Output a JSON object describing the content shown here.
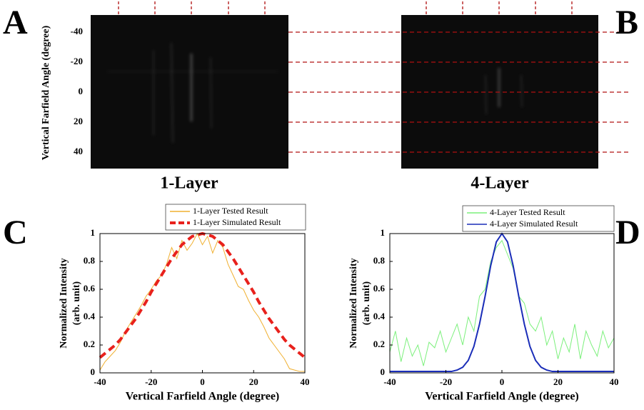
{
  "figure": {
    "image_ylabel": "Vertical Farfield Angle (degree)",
    "image_yticks": [
      -40,
      -20,
      0,
      20,
      40
    ],
    "images": [
      {
        "letter": "A",
        "caption": "1-Layer"
      },
      {
        "letter": "B",
        "caption": "4-Layer"
      }
    ]
  },
  "chart_data": [
    {
      "type": "line",
      "panel_label": "C",
      "xlabel": "Vertical Farfield Angle (degree)",
      "ylabel": [
        "Normalized Intensity",
        "(arb. unit)"
      ],
      "xlim": [
        -40,
        40
      ],
      "ylim": [
        0,
        1
      ],
      "xticks": [
        -40,
        -20,
        0,
        20,
        40
      ],
      "yticks": [
        0,
        0.2,
        0.4,
        0.6,
        0.8,
        1
      ],
      "legend": "top-center",
      "x": [
        -40,
        -38,
        -36,
        -34,
        -32,
        -30,
        -28,
        -26,
        -24,
        -22,
        -20,
        -18,
        -16,
        -14,
        -12,
        -10,
        -8,
        -6,
        -4,
        -2,
        0,
        2,
        4,
        6,
        8,
        10,
        12,
        14,
        16,
        18,
        20,
        22,
        24,
        26,
        28,
        30,
        32,
        34,
        36,
        38,
        40
      ],
      "series": [
        {
          "name": "1-Layer Tested Result",
          "color": "#f0b030",
          "style": "solid",
          "values": [
            0.02,
            0.08,
            0.12,
            0.16,
            0.22,
            0.3,
            0.36,
            0.42,
            0.48,
            0.55,
            0.6,
            0.66,
            0.7,
            0.78,
            0.9,
            0.82,
            0.95,
            0.88,
            0.93,
            1.0,
            0.92,
            0.98,
            0.86,
            0.95,
            0.9,
            0.78,
            0.7,
            0.62,
            0.6,
            0.52,
            0.45,
            0.4,
            0.33,
            0.25,
            0.2,
            0.15,
            0.1,
            0.03,
            0.02,
            0.01,
            0.01
          ]
        },
        {
          "name": "1-Layer Simulated Result",
          "color": "#e8211c",
          "style": "dashed",
          "values": [
            0.11,
            0.14,
            0.17,
            0.2,
            0.24,
            0.29,
            0.34,
            0.39,
            0.45,
            0.51,
            0.58,
            0.64,
            0.7,
            0.76,
            0.82,
            0.87,
            0.92,
            0.95,
            0.98,
            0.99,
            1,
            0.99,
            0.98,
            0.95,
            0.92,
            0.87,
            0.82,
            0.76,
            0.7,
            0.64,
            0.58,
            0.51,
            0.45,
            0.39,
            0.34,
            0.29,
            0.24,
            0.2,
            0.17,
            0.14,
            0.11
          ]
        }
      ]
    },
    {
      "type": "line",
      "panel_label": "D",
      "xlabel": "Vertical Farfield Angle (degree)",
      "ylabel": [
        "Normalized Intensity",
        "(arb. unit)"
      ],
      "xlim": [
        -40,
        40
      ],
      "ylim": [
        0,
        1
      ],
      "xticks": [
        -40,
        -20,
        0,
        20,
        40
      ],
      "yticks": [
        0,
        0.2,
        0.4,
        0.6,
        0.8,
        1
      ],
      "legend": "top-right",
      "x": [
        -40,
        -38,
        -36,
        -34,
        -32,
        -30,
        -28,
        -26,
        -24,
        -22,
        -20,
        -18,
        -16,
        -14,
        -12,
        -10,
        -8,
        -6,
        -4,
        -2,
        0,
        2,
        4,
        6,
        8,
        10,
        12,
        14,
        16,
        18,
        20,
        22,
        24,
        26,
        28,
        30,
        32,
        34,
        36,
        38,
        40
      ],
      "series": [
        {
          "name": "4-Layer Tested Result",
          "color": "#7cf07c",
          "style": "solid",
          "values": [
            0.15,
            0.3,
            0.08,
            0.25,
            0.12,
            0.2,
            0.05,
            0.22,
            0.18,
            0.3,
            0.15,
            0.25,
            0.35,
            0.2,
            0.4,
            0.3,
            0.55,
            0.6,
            0.8,
            0.9,
            0.95,
            0.85,
            0.75,
            0.55,
            0.5,
            0.35,
            0.3,
            0.4,
            0.2,
            0.3,
            0.1,
            0.25,
            0.15,
            0.35,
            0.1,
            0.3,
            0.2,
            0.12,
            0.3,
            0.18,
            0.25
          ]
        },
        {
          "name": "4-Layer Simulated Result",
          "color": "#1a2db8",
          "style": "solid",
          "values": [
            0.01,
            0.01,
            0.01,
            0.01,
            0.01,
            0.01,
            0.01,
            0.01,
            0.01,
            0.01,
            0.01,
            0.01,
            0.02,
            0.04,
            0.09,
            0.19,
            0.35,
            0.55,
            0.77,
            0.94,
            1,
            0.94,
            0.77,
            0.55,
            0.35,
            0.19,
            0.09,
            0.04,
            0.02,
            0.01,
            0.01,
            0.01,
            0.01,
            0.01,
            0.01,
            0.01,
            0.01,
            0.01,
            0.01,
            0.01,
            0.01
          ]
        }
      ]
    }
  ]
}
